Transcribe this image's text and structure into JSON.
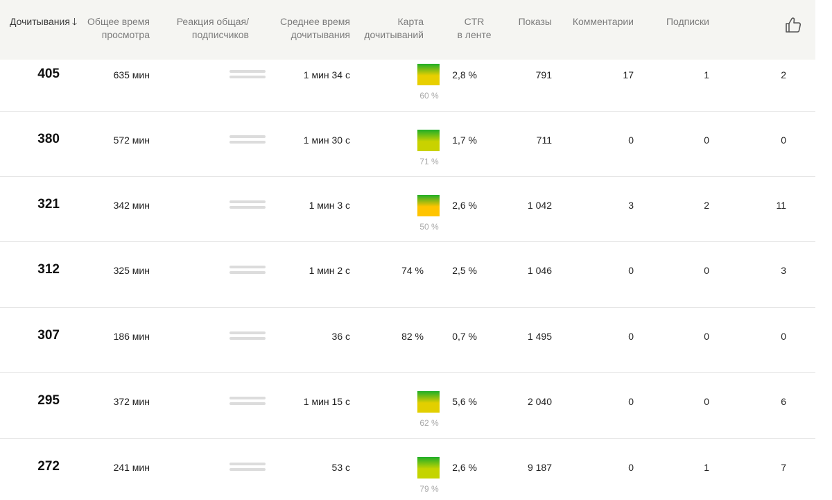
{
  "columns": {
    "reads": "Дочитывания",
    "total_time_1": "Общее время",
    "total_time_2": "просмотра",
    "reaction_1": "Реакция общая/",
    "reaction_2": "подписчиков",
    "avg_time_1": "Среднее время",
    "avg_time_2": "дочитывания",
    "map_1": "Карта",
    "map_2": "дочитываний",
    "ctr_1": "CTR",
    "ctr_2": "в ленте",
    "impressions": "Показы",
    "comments": "Комментарии",
    "subscriptions": "Подписки",
    "likes_icon": "thumbs-up-icon"
  },
  "rows": [
    {
      "reads": "405",
      "total_time": "635 мин",
      "avg_time": "1 мин 34 с",
      "map_type": "bar",
      "map_pct": "60 %",
      "map_color": "#e8cf00",
      "ctr": "2,8 %",
      "impressions": "791",
      "comments": "17",
      "subscriptions": "1",
      "likes": "2"
    },
    {
      "reads": "380",
      "total_time": "572 мин",
      "avg_time": "1 мин 30 с",
      "map_type": "bar",
      "map_pct": "71 %",
      "map_color": "#c9d200",
      "ctr": "1,7 %",
      "impressions": "711",
      "comments": "0",
      "subscriptions": "0",
      "likes": "0"
    },
    {
      "reads": "321",
      "total_time": "342 мин",
      "avg_time": "1 мин 3 с",
      "map_type": "bar",
      "map_pct": "50 %",
      "map_color": "#ffc400",
      "ctr": "2,6 %",
      "impressions": "1 042",
      "comments": "3",
      "subscriptions": "2",
      "likes": "11"
    },
    {
      "reads": "312",
      "total_time": "325 мин",
      "avg_time": "1 мин 2 с",
      "map_type": "text",
      "map_pct": "74 %",
      "map_color": "",
      "ctr": "2,5 %",
      "impressions": "1 046",
      "comments": "0",
      "subscriptions": "0",
      "likes": "3"
    },
    {
      "reads": "307",
      "total_time": "186 мин",
      "avg_time": "36 с",
      "map_type": "text",
      "map_pct": "82 %",
      "map_color": "",
      "ctr": "0,7 %",
      "impressions": "1 495",
      "comments": "0",
      "subscriptions": "0",
      "likes": "0"
    },
    {
      "reads": "295",
      "total_time": "372 мин",
      "avg_time": "1 мин 15 с",
      "map_type": "bar",
      "map_pct": "62 %",
      "map_color": "#e2cf00",
      "ctr": "5,6 %",
      "impressions": "2 040",
      "comments": "0",
      "subscriptions": "0",
      "likes": "6"
    },
    {
      "reads": "272",
      "total_time": "241 мин",
      "avg_time": "53 с",
      "map_type": "bar",
      "map_pct": "79 %",
      "map_color": "#c4d400",
      "ctr": "2,6 %",
      "impressions": "9 187",
      "comments": "0",
      "subscriptions": "1",
      "likes": "7"
    }
  ],
  "colors": {
    "header_bg": "#f5f5f2",
    "map_top": "#1fae28"
  }
}
